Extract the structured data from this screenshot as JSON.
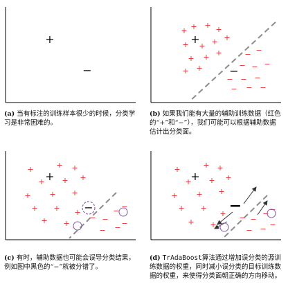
{
  "panels": [
    {
      "id": "a",
      "label": "(a)",
      "caption": "当有标注的训练样本很少的时候，分类学习是非常困难的。"
    },
    {
      "id": "b",
      "label": "(b)",
      "caption": "如果我们能有大量的辅助训练数据（红色的“+”和“−”），我们可能可以根据辅助数据估计出分类面。"
    },
    {
      "id": "c",
      "label": "(c)",
      "caption": "有时，辅助数据也可能会误导分类结果，例如图中黑色的“−”就被分错了。"
    },
    {
      "id": "d",
      "label": "(d)",
      "caption_method": "TrAdaBoost",
      "caption": "算法通过增加误分类的源训练数据的权重，同时减小误分类的目标训练数据的权重，来使得分类面朝正确的方向移动。"
    }
  ],
  "symbols": {
    "plus": "+",
    "minus": "−"
  },
  "colors": {
    "target": "#000000",
    "auxiliary": "#e8262b",
    "circle": "#8a5fb0",
    "boundary": "#8c8c8c",
    "axis": "#000000"
  }
}
